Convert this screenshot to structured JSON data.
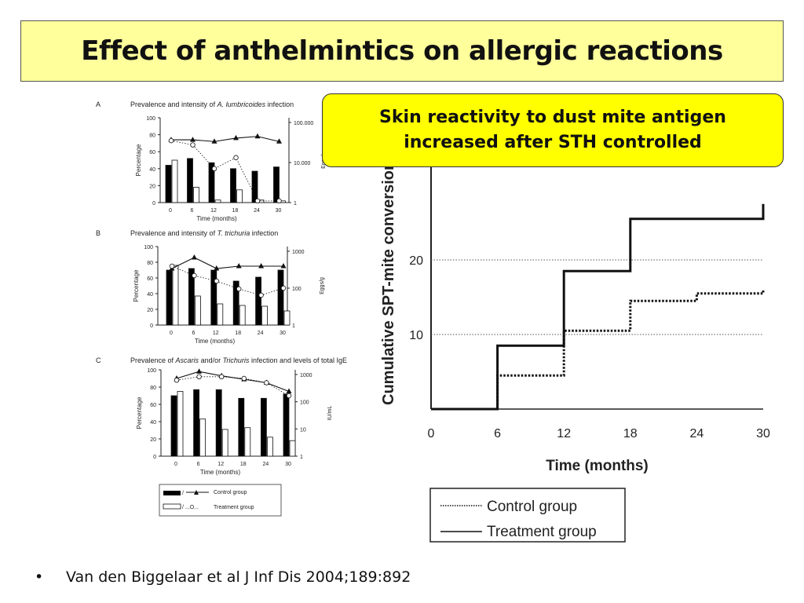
{
  "slide": {
    "title": "Effect of anthelmintics on allergic reactions",
    "callout_line1": "Skin reactivity to dust mite antigen",
    "callout_line2": "increased after STH controlled",
    "citation": "Van den Biggelaar et al J Inf Dis 2004;189:892"
  },
  "chart_data": [
    {
      "type": "bar",
      "panel_letter": "A",
      "title": "Prevalence and intensity of A. lumbricoides infection",
      "title_prefix": "Prevalence and intensity of ",
      "title_species": "A. lumbricoides",
      "title_suffix": " infection",
      "xlabel": "Time (months)",
      "ylabel": "Percentage",
      "y2label": "Eggs/g",
      "categories": [
        "0",
        "6",
        "12",
        "18",
        "24",
        "30"
      ],
      "ylim": [
        0,
        100
      ],
      "y_ticks": [
        "0",
        "20",
        "40",
        "60",
        "80",
        "100"
      ],
      "y2_ticks": [
        "1",
        "10.000",
        "100.000"
      ],
      "series": [
        {
          "name": "Control group",
          "kind": "bar",
          "fill": "#000000",
          "values": [
            44,
            52,
            47,
            40,
            37,
            42
          ]
        },
        {
          "name": "Treatment group",
          "kind": "bar",
          "fill": "#ffffff",
          "values": [
            50,
            18,
            3,
            15,
            3,
            2
          ]
        },
        {
          "name": "Control group",
          "kind": "line",
          "marker": "triangle",
          "values": [
            74,
            74,
            72,
            76,
            78,
            72
          ]
        },
        {
          "name": "Treatment group",
          "kind": "line",
          "marker": "circle",
          "values": [
            73,
            68,
            40,
            53,
            2,
            2
          ]
        }
      ]
    },
    {
      "type": "bar",
      "panel_letter": "B",
      "title": "Prevalence and intensity of T. trichuria infection",
      "title_prefix": "Prevalence and intensity of ",
      "title_species": "T. trichuria",
      "title_suffix": " infection",
      "xlabel": "Time (months)",
      "ylabel": "Percentage",
      "y2label": "Eggs/g",
      "categories": [
        "0",
        "6",
        "12",
        "18",
        "24",
        "30"
      ],
      "ylim": [
        0,
        100
      ],
      "y_ticks": [
        "0",
        "20",
        "40",
        "60",
        "80",
        "100"
      ],
      "y2_ticks": [
        "1",
        "100",
        "1000"
      ],
      "series": [
        {
          "name": "Control group",
          "kind": "bar",
          "fill": "#000000",
          "values": [
            70,
            72,
            70,
            56,
            61,
            70
          ]
        },
        {
          "name": "Treatment group",
          "kind": "bar",
          "fill": "#ffffff",
          "values": [
            76,
            37,
            27,
            25,
            24,
            18
          ]
        },
        {
          "name": "Control group",
          "kind": "line",
          "marker": "triangle",
          "values": [
            72,
            86,
            72,
            75,
            75,
            75
          ]
        },
        {
          "name": "Treatment group",
          "kind": "line",
          "marker": "circle",
          "values": [
            75,
            63,
            56,
            46,
            38,
            47
          ]
        }
      ]
    },
    {
      "type": "bar",
      "panel_letter": "C",
      "title": "Prevalence of Ascaris and/or Trichuris infection and levels of total IgE",
      "title_parts": [
        "Prevalence of ",
        "Ascaris",
        " and/or ",
        "Trichuris",
        " infection and levels of total IgE"
      ],
      "xlabel": "Time (months)",
      "ylabel": "Percentage",
      "y2label": "IU/mL",
      "categories": [
        "0",
        "6",
        "12",
        "18",
        "24",
        "30"
      ],
      "ylim": [
        0,
        100
      ],
      "y_ticks": [
        "0",
        "20",
        "40",
        "60",
        "80",
        "100"
      ],
      "y2_ticks": [
        "1",
        "10",
        "100",
        "1000"
      ],
      "legend": [
        {
          "label": "Control group",
          "style": "filled-bar-triangle-line"
        },
        {
          "label": "Treatment group",
          "style": "open-bar-circle-dotted"
        }
      ],
      "series": [
        {
          "name": "Control group",
          "kind": "bar",
          "fill": "#000000",
          "values": [
            70,
            77,
            77,
            67,
            67,
            72
          ]
        },
        {
          "name": "Treatment group",
          "kind": "bar",
          "fill": "#ffffff",
          "values": [
            75,
            43,
            31,
            33,
            22,
            18
          ]
        },
        {
          "name": "Control group",
          "kind": "line",
          "marker": "triangle",
          "values": [
            90,
            98,
            93,
            89,
            85,
            75
          ]
        },
        {
          "name": "Treatment group",
          "kind": "line",
          "marker": "circle",
          "values": [
            88,
            92,
            92,
            90,
            85,
            70
          ]
        }
      ]
    },
    {
      "type": "line",
      "step": true,
      "xlabel": "Time (months)",
      "ylabel": "Cumulative SPT-mite conversion",
      "x_ticks": [
        0,
        6,
        12,
        18,
        24,
        30
      ],
      "y_ticks": [
        10,
        20
      ],
      "xlim": [
        0,
        30
      ],
      "ylim": [
        0,
        26
      ],
      "grid": "dotted horizontal at 10 and 20",
      "legend_position": "bottom-left",
      "series": [
        {
          "name": "Control group",
          "style": "dotted",
          "x": [
            0,
            6,
            12,
            18,
            24,
            30
          ],
          "y": [
            0,
            4.5,
            10.5,
            14.5,
            15.5,
            16
          ]
        },
        {
          "name": "Treatment group",
          "style": "solid",
          "x": [
            0,
            6,
            12,
            18,
            24,
            30
          ],
          "y": [
            0,
            8.5,
            18.5,
            25.5,
            25.5,
            27.5
          ]
        }
      ]
    }
  ]
}
